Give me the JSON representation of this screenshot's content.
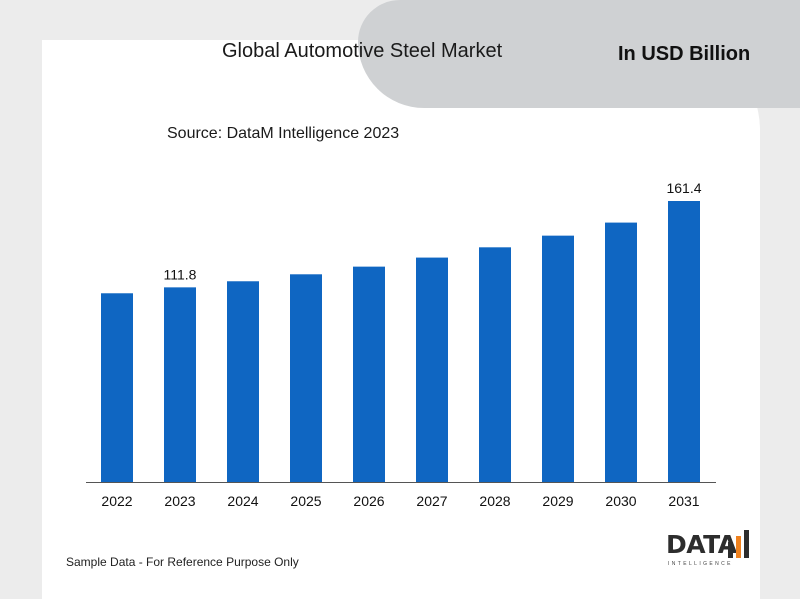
{
  "header": {
    "title": "Global Automotive Steel Market",
    "unit": "In USD Billion",
    "source": "Source: DataM Intelligence 2023"
  },
  "footer": {
    "note": "Sample Data - For Reference Purpose Only",
    "logo_text": "DATA",
    "logo_sub": "INTELLIGENCE"
  },
  "colors": {
    "bar": "#0f66c2",
    "axis": "#555555",
    "logo_accent": "#f0821e"
  },
  "chart_data": {
    "type": "bar",
    "title": "Global Automotive Steel Market",
    "xlabel": "",
    "ylabel": "",
    "categories": [
      "2022",
      "2023",
      "2024",
      "2025",
      "2026",
      "2027",
      "2028",
      "2029",
      "2030",
      "2031"
    ],
    "values": [
      108.4,
      111.8,
      115.3,
      119.3,
      123.7,
      128.9,
      134.8,
      141.5,
      149.0,
      161.4
    ],
    "data_labels": {
      "2023": "111.8",
      "2031": "161.4"
    },
    "ylim": [
      0,
      161.4
    ],
    "grid": false,
    "legend": "none"
  }
}
